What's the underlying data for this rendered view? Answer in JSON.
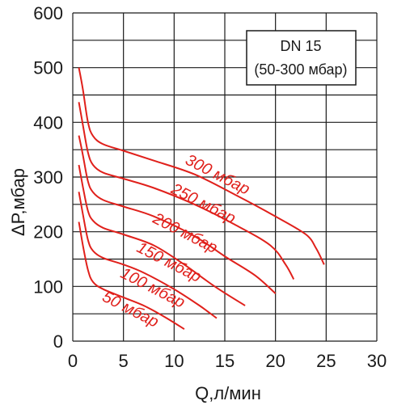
{
  "chart_data": {
    "type": "line",
    "title": "",
    "xlabel": "Q,л/мин",
    "ylabel": "ΔP,мбар",
    "xlim": [
      0,
      30
    ],
    "ylim": [
      0,
      600
    ],
    "x_ticks": [
      "0",
      "5",
      "10",
      "15",
      "20",
      "25",
      "30"
    ],
    "y_ticks": [
      "0",
      "100",
      "200",
      "300",
      "400",
      "500",
      "600"
    ],
    "grid": true,
    "box": {
      "line1": "DN 15",
      "line2": "(50-300 мбар)"
    },
    "line_color": "#e0201b",
    "series": [
      {
        "name": "300 мбар",
        "points": [
          [
            0.6,
            500
          ],
          [
            1.0,
            460
          ],
          [
            1.5,
            400
          ],
          [
            2.0,
            375
          ],
          [
            3.0,
            360
          ],
          [
            5.0,
            348
          ],
          [
            8.0,
            330
          ],
          [
            12.0,
            305
          ],
          [
            16.0,
            268
          ],
          [
            20.0,
            228
          ],
          [
            23.0,
            195
          ],
          [
            24.0,
            170
          ],
          [
            24.8,
            140
          ]
        ]
      },
      {
        "name": "250 мбар",
        "points": [
          [
            0.6,
            437
          ],
          [
            1.0,
            395
          ],
          [
            1.5,
            345
          ],
          [
            2.0,
            322
          ],
          [
            3.0,
            308
          ],
          [
            5.0,
            297
          ],
          [
            8.0,
            280
          ],
          [
            12.0,
            250
          ],
          [
            16.0,
            213
          ],
          [
            19.5,
            175
          ],
          [
            21.0,
            140
          ],
          [
            21.8,
            113
          ]
        ]
      },
      {
        "name": "200 мбар",
        "points": [
          [
            0.6,
            376
          ],
          [
            1.0,
            340
          ],
          [
            1.5,
            292
          ],
          [
            2.0,
            272
          ],
          [
            3.0,
            258
          ],
          [
            5.0,
            246
          ],
          [
            8.0,
            228
          ],
          [
            12.0,
            192
          ],
          [
            15.0,
            155
          ],
          [
            18.0,
            120
          ],
          [
            20.0,
            87
          ]
        ]
      },
      {
        "name": "150 мбар",
        "points": [
          [
            0.6,
            322
          ],
          [
            1.0,
            282
          ],
          [
            1.5,
            238
          ],
          [
            2.0,
            220
          ],
          [
            3.0,
            207
          ],
          [
            5.0,
            195
          ],
          [
            8.0,
            175
          ],
          [
            11.0,
            140
          ],
          [
            14.0,
            100
          ],
          [
            17.0,
            65
          ]
        ]
      },
      {
        "name": "100 мбар",
        "points": [
          [
            0.6,
            273
          ],
          [
            1.0,
            232
          ],
          [
            1.5,
            185
          ],
          [
            2.0,
            165
          ],
          [
            3.0,
            152
          ],
          [
            5.0,
            140
          ],
          [
            7.0,
            125
          ],
          [
            10.0,
            95
          ],
          [
            12.5,
            65
          ],
          [
            14.2,
            42
          ]
        ]
      },
      {
        "name": "50 мбар",
        "points": [
          [
            0.6,
            218
          ],
          [
            1.0,
            175
          ],
          [
            1.5,
            130
          ],
          [
            2.0,
            108
          ],
          [
            3.0,
            95
          ],
          [
            5.0,
            80
          ],
          [
            7.0,
            65
          ],
          [
            9.0,
            45
          ],
          [
            11.0,
            22
          ]
        ]
      }
    ]
  }
}
